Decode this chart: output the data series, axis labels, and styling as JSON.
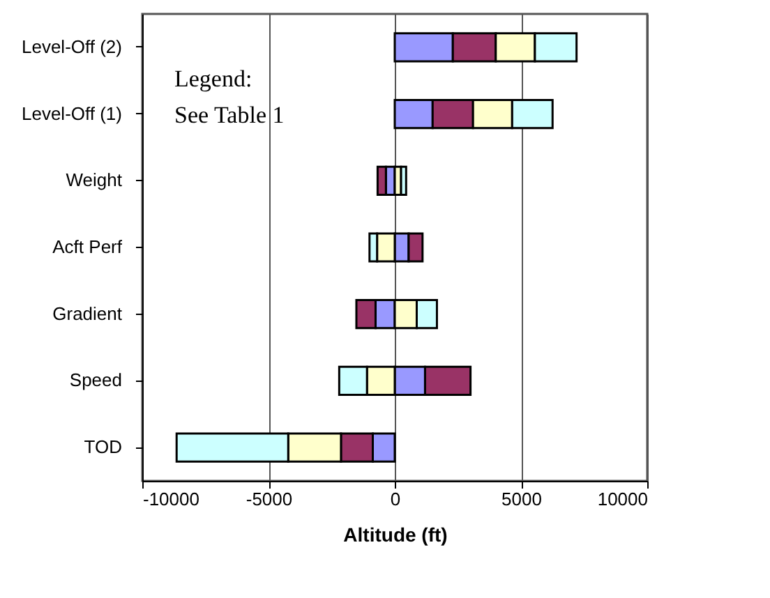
{
  "chart_data": {
    "type": "bar",
    "orientation": "horizontal",
    "stacked": true,
    "xlabel": "Altitude (ft)",
    "categories": [
      "Level-Off (2)",
      "Level-Off (1)",
      "Weight",
      "Acft Perf",
      "Gradient",
      "Speed",
      "TOD"
    ],
    "series": [
      {
        "color": "#9999ff",
        "values": [
          2300,
          1500,
          -350,
          550,
          -760,
          1200,
          -870
        ]
      },
      {
        "color": "#993366",
        "values": [
          1700,
          1600,
          -330,
          550,
          -760,
          1800,
          -1260
        ]
      },
      {
        "color": "#ffffcc",
        "values": [
          1550,
          1550,
          250,
          -700,
          870,
          -1100,
          -2090
        ]
      },
      {
        "color": "#ccffff",
        "values": [
          1650,
          1600,
          200,
          -300,
          800,
          -1100,
          -4420
        ]
      }
    ],
    "xlim": [
      -10000,
      10000
    ],
    "xticks": [
      -10000,
      -5000,
      0,
      5000,
      10000
    ],
    "grid": "x",
    "annotations": [
      "Legend:",
      "See Table 1"
    ]
  }
}
